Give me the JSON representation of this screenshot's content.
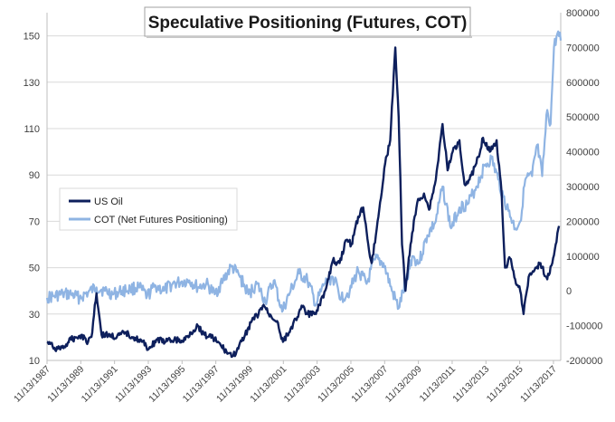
{
  "chart_data": {
    "type": "line",
    "title": "Speculative Positioning (Futures, COT)",
    "x_tick_labels": [
      "11/13/1987",
      "11/13/1989",
      "11/13/1991",
      "11/13/1993",
      "11/13/1995",
      "11/13/1997",
      "11/13/1999",
      "11/13/2001",
      "11/13/2003",
      "11/13/2005",
      "11/13/2007",
      "11/13/2009",
      "11/13/2011",
      "11/13/2013",
      "11/13/2015",
      "11/13/2017"
    ],
    "x_range": [
      1987.87,
      2018.3
    ],
    "y_left": {
      "range": [
        10,
        160
      ],
      "ticks": [
        10,
        30,
        50,
        70,
        90,
        110,
        130,
        150
      ]
    },
    "y_right": {
      "range": [
        -200000,
        800000
      ],
      "ticks": [
        -200000,
        -100000,
        0,
        100000,
        200000,
        300000,
        400000,
        500000,
        600000,
        700000,
        800000
      ]
    },
    "grid": "horizontal",
    "legend_position": "center-left",
    "series": [
      {
        "name": "US Oil",
        "axis": "left",
        "color": "#0d1f5c",
        "points": [
          [
            1987.87,
            18
          ],
          [
            1988.2,
            16
          ],
          [
            1988.5,
            15
          ],
          [
            1988.9,
            16
          ],
          [
            1989.3,
            19
          ],
          [
            1989.6,
            20
          ],
          [
            1989.9,
            21
          ],
          [
            1990.3,
            18
          ],
          [
            1990.55,
            22
          ],
          [
            1990.7,
            34
          ],
          [
            1990.8,
            39
          ],
          [
            1990.95,
            30
          ],
          [
            1991.1,
            21
          ],
          [
            1991.5,
            21
          ],
          [
            1992.0,
            20
          ],
          [
            1992.5,
            22
          ],
          [
            1993.0,
            20
          ],
          [
            1993.5,
            18
          ],
          [
            1993.9,
            15
          ],
          [
            1994.4,
            19
          ],
          [
            1994.9,
            18
          ],
          [
            1995.4,
            19
          ],
          [
            1995.9,
            18
          ],
          [
            1996.4,
            22
          ],
          [
            1996.8,
            25
          ],
          [
            1997.2,
            21
          ],
          [
            1997.7,
            20
          ],
          [
            1998.2,
            16
          ],
          [
            1998.6,
            13
          ],
          [
            1998.9,
            12
          ],
          [
            1999.2,
            15
          ],
          [
            1999.6,
            21
          ],
          [
            2000.0,
            27
          ],
          [
            2000.4,
            30
          ],
          [
            2000.7,
            34
          ],
          [
            2001.0,
            30
          ],
          [
            2001.5,
            27
          ],
          [
            2001.85,
            18
          ],
          [
            2002.2,
            22
          ],
          [
            2002.6,
            28
          ],
          [
            2003.0,
            33
          ],
          [
            2003.3,
            30
          ],
          [
            2003.7,
            30
          ],
          [
            2004.0,
            34
          ],
          [
            2004.4,
            41
          ],
          [
            2004.8,
            53
          ],
          [
            2005.2,
            52
          ],
          [
            2005.6,
            62
          ],
          [
            2005.9,
            60
          ],
          [
            2006.3,
            72
          ],
          [
            2006.6,
            76
          ],
          [
            2006.9,
            60
          ],
          [
            2007.1,
            52
          ],
          [
            2007.5,
            72
          ],
          [
            2007.9,
            95
          ],
          [
            2008.2,
            105
          ],
          [
            2008.5,
            145
          ],
          [
            2008.7,
            115
          ],
          [
            2008.9,
            60
          ],
          [
            2009.1,
            40
          ],
          [
            2009.4,
            60
          ],
          [
            2009.8,
            78
          ],
          [
            2010.2,
            82
          ],
          [
            2010.5,
            75
          ],
          [
            2010.9,
            88
          ],
          [
            2011.3,
            112
          ],
          [
            2011.6,
            92
          ],
          [
            2011.9,
            100
          ],
          [
            2012.3,
            105
          ],
          [
            2012.6,
            86
          ],
          [
            2012.9,
            88
          ],
          [
            2013.3,
            95
          ],
          [
            2013.7,
            106
          ],
          [
            2014.1,
            100
          ],
          [
            2014.5,
            105
          ],
          [
            2014.8,
            82
          ],
          [
            2015.0,
            50
          ],
          [
            2015.3,
            54
          ],
          [
            2015.6,
            45
          ],
          [
            2015.9,
            40
          ],
          [
            2016.1,
            30
          ],
          [
            2016.4,
            46
          ],
          [
            2016.8,
            50
          ],
          [
            2017.1,
            52
          ],
          [
            2017.5,
            45
          ],
          [
            2017.8,
            52
          ],
          [
            2018.0,
            60
          ],
          [
            2018.2,
            68
          ]
        ]
      },
      {
        "name": "COT (Net Futures Positioning)",
        "axis": "right",
        "color": "#8fb4e3",
        "points": [
          [
            1987.87,
            -20000
          ],
          [
            1988.3,
            -15000
          ],
          [
            1988.8,
            -10000
          ],
          [
            1989.3,
            -10000
          ],
          [
            1989.8,
            -20000
          ],
          [
            1990.3,
            -5000
          ],
          [
            1990.8,
            10000
          ],
          [
            1991.3,
            0
          ],
          [
            1991.8,
            -10000
          ],
          [
            1992.3,
            0
          ],
          [
            1992.8,
            5000
          ],
          [
            1993.3,
            10000
          ],
          [
            1993.8,
            -15000
          ],
          [
            1994.3,
            15000
          ],
          [
            1994.8,
            0
          ],
          [
            1995.3,
            20000
          ],
          [
            1995.8,
            25000
          ],
          [
            1996.3,
            30000
          ],
          [
            1996.8,
            10000
          ],
          [
            1997.3,
            20000
          ],
          [
            1997.8,
            -10000
          ],
          [
            1998.3,
            30000
          ],
          [
            1998.8,
            70000
          ],
          [
            1999.3,
            40000
          ],
          [
            1999.8,
            -10000
          ],
          [
            2000.3,
            20000
          ],
          [
            2000.8,
            -30000
          ],
          [
            2001.3,
            30000
          ],
          [
            2001.8,
            -60000
          ],
          [
            2002.3,
            0
          ],
          [
            2002.8,
            50000
          ],
          [
            2003.3,
            30000
          ],
          [
            2003.8,
            -40000
          ],
          [
            2004.3,
            20000
          ],
          [
            2004.8,
            40000
          ],
          [
            2005.3,
            -20000
          ],
          [
            2005.8,
            0
          ],
          [
            2006.3,
            60000
          ],
          [
            2006.8,
            20000
          ],
          [
            2007.3,
            90000
          ],
          [
            2007.8,
            80000
          ],
          [
            2008.3,
            0
          ],
          [
            2008.7,
            -50000
          ],
          [
            2009.1,
            20000
          ],
          [
            2009.5,
            100000
          ],
          [
            2009.9,
            80000
          ],
          [
            2010.4,
            160000
          ],
          [
            2010.9,
            200000
          ],
          [
            2011.3,
            300000
          ],
          [
            2011.8,
            180000
          ],
          [
            2012.3,
            240000
          ],
          [
            2012.8,
            250000
          ],
          [
            2013.3,
            300000
          ],
          [
            2013.8,
            360000
          ],
          [
            2014.2,
            380000
          ],
          [
            2014.6,
            320000
          ],
          [
            2014.9,
            270000
          ],
          [
            2015.2,
            230000
          ],
          [
            2015.6,
            180000
          ],
          [
            2015.9,
            200000
          ],
          [
            2016.2,
            320000
          ],
          [
            2016.6,
            330000
          ],
          [
            2016.9,
            420000
          ],
          [
            2017.2,
            330000
          ],
          [
            2017.5,
            520000
          ],
          [
            2017.7,
            480000
          ],
          [
            2017.9,
            700000
          ],
          [
            2018.1,
            740000
          ],
          [
            2018.3,
            720000
          ]
        ]
      }
    ]
  }
}
